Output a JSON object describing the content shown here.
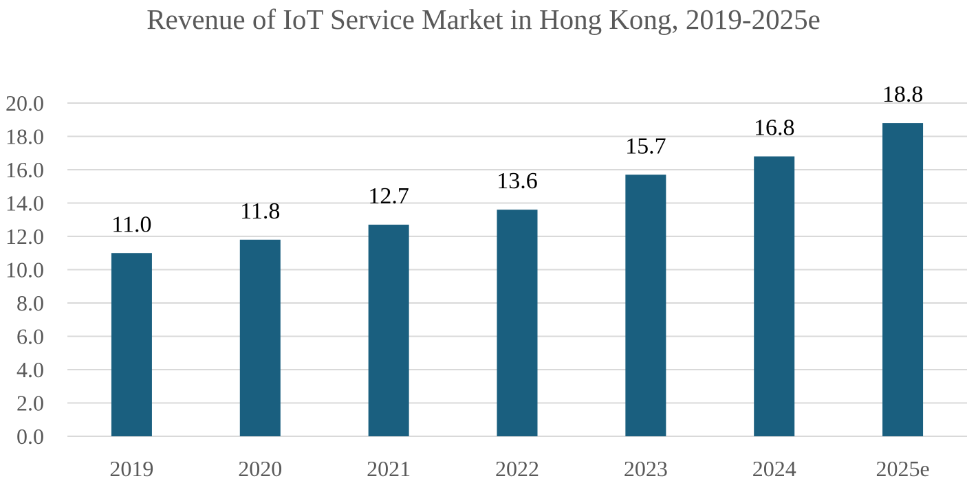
{
  "chart_data": {
    "type": "bar",
    "title": "Revenue of IoT Service Market in Hong Kong, 2019-2025e",
    "xlabel": "",
    "ylabel": "",
    "categories": [
      "2019",
      "2020",
      "2021",
      "2022",
      "2023",
      "2024",
      "2025e"
    ],
    "values": [
      11.0,
      11.8,
      12.7,
      13.6,
      15.7,
      16.8,
      18.8
    ],
    "data_labels": [
      "11.0",
      "11.8",
      "12.7",
      "13.6",
      "15.7",
      "16.8",
      "18.8"
    ],
    "ylim": [
      0,
      20
    ],
    "y_ticks": [
      "0.0",
      "2.0",
      "4.0",
      "6.0",
      "8.0",
      "10.0",
      "12.0",
      "14.0",
      "16.0",
      "18.0",
      "20.0"
    ],
    "grid": true,
    "legend": "none",
    "bar_color": "#1a5f7f"
  }
}
